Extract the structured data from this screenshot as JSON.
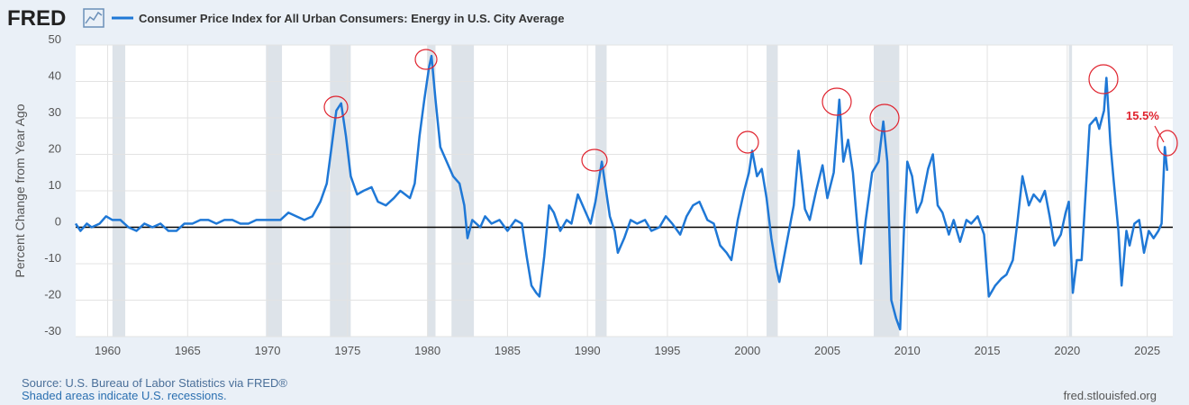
{
  "chart_data": {
    "type": "line",
    "logo": "FRED",
    "title": "Consumer Price Index for All Urban Consumers: Energy in U.S. City Average",
    "y_label": "Percent Change from Year Ago",
    "source": "Source: U.S. Bureau of Labor Statistics via FRED®",
    "note": "Shaded areas indicate U.S. recessions.",
    "site": "fred.stlouisfed.org",
    "annotation": "15.5%",
    "xlim": [
      1958,
      2026.6
    ],
    "ylim": [
      -30,
      50
    ],
    "xticks": [
      1960,
      1965,
      1970,
      1975,
      1980,
      1985,
      1990,
      1995,
      2000,
      2005,
      2010,
      2015,
      2020,
      2025
    ],
    "yticks": [
      -30,
      -20,
      -10,
      0,
      10,
      20,
      30,
      40,
      50
    ],
    "grid": true,
    "recessions": [
      [
        1960.3,
        1961.1
      ],
      [
        1969.9,
        1970.9
      ],
      [
        1973.9,
        1975.2
      ],
      [
        1980.0,
        1980.5
      ],
      [
        1981.5,
        1982.9
      ],
      [
        1990.5,
        1991.2
      ],
      [
        2001.2,
        2001.9
      ],
      [
        2007.9,
        2009.5
      ],
      [
        2020.1,
        2020.3
      ]
    ],
    "x": [
      1958.0,
      1958.3,
      1958.7,
      1959.0,
      1959.5,
      1959.9,
      1960.3,
      1960.8,
      1961.3,
      1961.8,
      1962.3,
      1962.8,
      1963.3,
      1963.8,
      1964.3,
      1964.8,
      1965.3,
      1965.8,
      1966.3,
      1966.8,
      1967.3,
      1967.8,
      1968.3,
      1968.8,
      1969.3,
      1969.8,
      1970.3,
      1970.8,
      1971.3,
      1971.8,
      1972.3,
      1972.8,
      1973.3,
      1973.7,
      1974.0,
      1974.3,
      1974.6,
      1974.9,
      1975.2,
      1975.6,
      1976.0,
      1976.5,
      1976.9,
      1977.4,
      1977.9,
      1978.3,
      1978.6,
      1978.9,
      1979.2,
      1979.5,
      1979.8,
      1980.1,
      1980.25,
      1980.5,
      1980.8,
      1981.2,
      1981.6,
      1982.0,
      1982.3,
      1982.5,
      1982.8,
      1983.3,
      1983.6,
      1984.0,
      1984.5,
      1985.0,
      1985.5,
      1985.9,
      1986.2,
      1986.5,
      1986.8,
      1987.0,
      1987.3,
      1987.6,
      1987.9,
      1988.3,
      1988.7,
      1989.0,
      1989.4,
      1989.8,
      1990.2,
      1990.5,
      1990.9,
      1991.1,
      1991.4,
      1991.7,
      1991.9,
      1992.3,
      1992.7,
      1993.1,
      1993.6,
      1994.0,
      1994.5,
      1994.9,
      1995.3,
      1995.8,
      1996.2,
      1996.6,
      1997.0,
      1997.5,
      1997.9,
      1998.3,
      1998.7,
      1999.0,
      1999.4,
      1999.8,
      2000.1,
      2000.3,
      2000.6,
      2000.9,
      2001.2,
      2001.5,
      2001.8,
      2002.0,
      2002.3,
      2002.6,
      2002.9,
      2003.2,
      2003.6,
      2003.9,
      2004.3,
      2004.7,
      2005.0,
      2005.4,
      2005.75,
      2006.0,
      2006.3,
      2006.6,
      2006.9,
      2007.1,
      2007.4,
      2007.8,
      2008.2,
      2008.5,
      2008.75,
      2009.0,
      2009.3,
      2009.55,
      2009.8,
      2010.0,
      2010.3,
      2010.6,
      2010.9,
      2011.3,
      2011.6,
      2011.9,
      2012.2,
      2012.6,
      2012.9,
      2013.3,
      2013.7,
      2014.0,
      2014.4,
      2014.8,
      2015.1,
      2015.5,
      2015.9,
      2016.2,
      2016.6,
      2016.9,
      2017.2,
      2017.6,
      2017.9,
      2018.3,
      2018.6,
      2018.9,
      2019.2,
      2019.6,
      2019.9,
      2020.1,
      2020.35,
      2020.6,
      2020.9,
      2021.2,
      2021.4,
      2021.8,
      2022.0,
      2022.3,
      2022.45,
      2022.7,
      2022.9,
      2023.2,
      2023.4,
      2023.7,
      2023.9,
      2024.2,
      2024.5,
      2024.8,
      2025.1,
      2025.4,
      2025.7,
      2025.9,
      2026.1,
      2026.25
    ],
    "series": [
      {
        "name": "Consumer Price Index for All Urban Consumers: Energy in U.S. City Average",
        "color": "#1f78d6",
        "values": [
          1,
          -1,
          1,
          0,
          1,
          3,
          2,
          2,
          0,
          -1,
          1,
          0,
          1,
          -1,
          -1,
          1,
          1,
          2,
          2,
          1,
          2,
          2,
          1,
          1,
          2,
          2,
          2,
          2,
          4,
          3,
          2,
          3,
          7,
          12,
          22,
          32,
          34,
          25,
          14,
          9,
          10,
          11,
          7,
          6,
          8,
          10,
          9,
          8,
          12,
          25,
          35,
          44,
          47,
          35,
          22,
          18,
          14,
          12,
          6,
          -3,
          2,
          0,
          3,
          1,
          2,
          -1,
          2,
          1,
          -8,
          -16,
          -18,
          -19,
          -8,
          6,
          4,
          -1,
          2,
          1,
          9,
          5,
          1,
          7,
          18,
          12,
          3,
          -1,
          -7,
          -3,
          2,
          1,
          2,
          -1,
          0,
          3,
          1,
          -2,
          3,
          6,
          7,
          2,
          1,
          -5,
          -7,
          -9,
          2,
          10,
          15,
          21,
          14,
          16,
          8,
          -3,
          -11,
          -15,
          -8,
          -1,
          6,
          21,
          5,
          2,
          10,
          17,
          8,
          15,
          35,
          18,
          24,
          15,
          -1,
          -10,
          2,
          15,
          18,
          29,
          18,
          -20,
          -25,
          -28,
          0,
          18,
          14,
          4,
          7,
          16,
          20,
          6,
          4,
          -2,
          2,
          -4,
          2,
          1,
          3,
          -2,
          -19,
          -16,
          -14,
          -13,
          -9,
          2,
          14,
          6,
          9,
          7,
          10,
          3,
          -5,
          -2,
          4,
          7,
          -18,
          -9,
          -9,
          13,
          28,
          30,
          27,
          32,
          41,
          23,
          13,
          -1,
          -16,
          -1,
          -5,
          1,
          2,
          -7,
          -1,
          -3,
          -1,
          1,
          22,
          15.5
        ]
      }
    ]
  }
}
